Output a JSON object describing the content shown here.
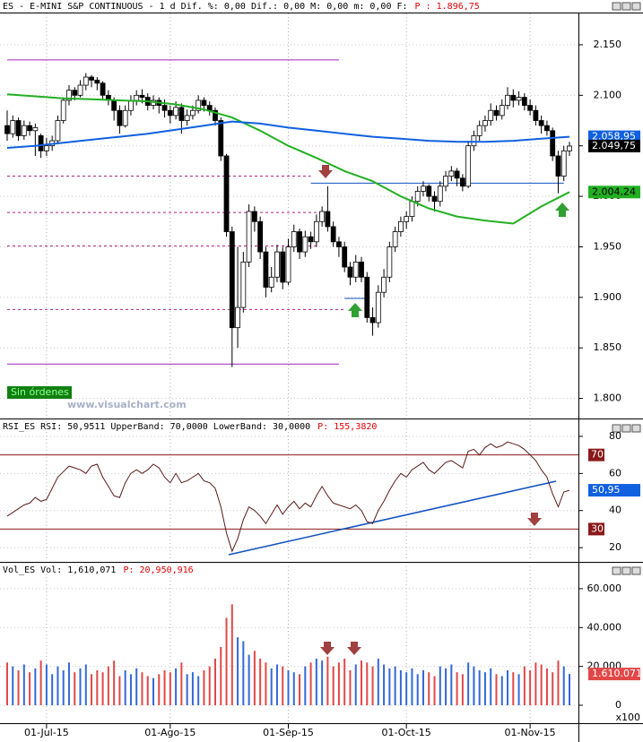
{
  "chart_data": [
    {
      "type": "candlestick",
      "title": "ES - E-MINI S&P CONTINUOUS - 1 d Dif. %: 0,00 Dif.: 0,00 M: 0,00 m: 0,00 F:",
      "subtitle": "P : 1.896,75",
      "annotations": [
        "Sin órdenes",
        "www.visualchart.com"
      ],
      "up_color": "#ffffff",
      "down_color": "#000000",
      "ylim": [
        1781,
        2181
      ],
      "yticks": [
        {
          "value": 1800,
          "label": "1.800"
        },
        {
          "value": 1850,
          "label": "1.850"
        },
        {
          "value": 1900,
          "label": "1.900"
        },
        {
          "value": 1950,
          "label": "1.950"
        },
        {
          "value": 2000,
          "label": "2.000"
        },
        {
          "value": 2050,
          "label": "2.050"
        },
        {
          "value": 2100,
          "label": "2.100"
        },
        {
          "value": 2150,
          "label": "2.150"
        }
      ],
      "ohlc": [
        [
          2070,
          2085,
          2055,
          2062
        ],
        [
          2062,
          2080,
          2058,
          2075
        ],
        [
          2075,
          2078,
          2055,
          2060
        ],
        [
          2060,
          2075,
          2056,
          2070
        ],
        [
          2070,
          2074,
          2060,
          2065
        ],
        [
          2065,
          2072,
          2040,
          2068
        ],
        [
          2060,
          2062,
          2038,
          2045
        ],
        [
          2045,
          2058,
          2040,
          2050
        ],
        [
          2050,
          2060,
          2045,
          2055
        ],
        [
          2055,
          2080,
          2052,
          2075
        ],
        [
          2075,
          2098,
          2072,
          2095
        ],
        [
          2095,
          2110,
          2090,
          2105
        ],
        [
          2105,
          2108,
          2095,
          2100
        ],
        [
          2100,
          2115,
          2098,
          2110
        ],
        [
          2110,
          2122,
          2105,
          2118
        ],
        [
          2118,
          2120,
          2108,
          2115
        ],
        [
          2115,
          2118,
          2105,
          2112
        ],
        [
          2112,
          2114,
          2095,
          2100
        ],
        [
          2100,
          2105,
          2090,
          2095
        ],
        [
          2095,
          2098,
          2075,
          2085
        ],
        [
          2085,
          2090,
          2062,
          2070
        ],
        [
          2070,
          2090,
          2068,
          2085
        ],
        [
          2085,
          2100,
          2080,
          2095
        ],
        [
          2095,
          2105,
          2090,
          2100
        ],
        [
          2100,
          2106,
          2092,
          2098
        ],
        [
          2098,
          2102,
          2085,
          2090
        ],
        [
          2090,
          2100,
          2086,
          2095
        ],
        [
          2095,
          2098,
          2082,
          2090
        ],
        [
          2090,
          2096,
          2078,
          2085
        ],
        [
          2085,
          2090,
          2072,
          2080
        ],
        [
          2080,
          2094,
          2076,
          2088
        ],
        [
          2088,
          2092,
          2062,
          2075
        ],
        [
          2075,
          2086,
          2070,
          2080
        ],
        [
          2080,
          2090,
          2076,
          2085
        ],
        [
          2085,
          2100,
          2082,
          2095
        ],
        [
          2095,
          2098,
          2084,
          2090
        ],
        [
          2090,
          2094,
          2080,
          2085
        ],
        [
          2085,
          2088,
          2070,
          2075
        ],
        [
          2075,
          2078,
          2035,
          2040
        ],
        [
          2040,
          2042,
          1960,
          1965
        ],
        [
          1965,
          1970,
          1831,
          1870
        ],
        [
          1870,
          1950,
          1850,
          1890
        ],
        [
          1890,
          1945,
          1885,
          1935
        ],
        [
          1935,
          1992,
          1930,
          1985
        ],
        [
          1985,
          1990,
          1965,
          1975
        ],
        [
          1975,
          1980,
          1938,
          1945
        ],
        [
          1945,
          1950,
          1900,
          1910
        ],
        [
          1910,
          1930,
          1905,
          1920
        ],
        [
          1920,
          1952,
          1915,
          1945
        ],
        [
          1945,
          1950,
          1908,
          1915
        ],
        [
          1915,
          1958,
          1912,
          1950
        ],
        [
          1950,
          1972,
          1945,
          1965
        ],
        [
          1965,
          1968,
          1938,
          1945
        ],
        [
          1945,
          1966,
          1940,
          1960
        ],
        [
          1960,
          1965,
          1948,
          1955
        ],
        [
          1955,
          1982,
          1950,
          1975
        ],
        [
          1975,
          1990,
          1970,
          1985
        ],
        [
          1985,
          2010,
          1965,
          1970
        ],
        [
          1970,
          1975,
          1950,
          1955
        ],
        [
          1955,
          1960,
          1940,
          1950
        ],
        [
          1950,
          1955,
          1925,
          1930
        ],
        [
          1930,
          1935,
          1912,
          1920
        ],
        [
          1920,
          1942,
          1915,
          1935
        ],
        [
          1935,
          1940,
          1915,
          1920
        ],
        [
          1920,
          1925,
          1875,
          1880
        ],
        [
          1880,
          1890,
          1862,
          1875
        ],
        [
          1875,
          1912,
          1870,
          1905
        ],
        [
          1905,
          1928,
          1900,
          1920
        ],
        [
          1920,
          1955,
          1915,
          1950
        ],
        [
          1950,
          1970,
          1945,
          1965
        ],
        [
          1965,
          1980,
          1960,
          1975
        ],
        [
          1975,
          1985,
          1968,
          1980
        ],
        [
          1980,
          2000,
          1975,
          1995
        ],
        [
          1995,
          2010,
          1990,
          2005
        ],
        [
          2005,
          2015,
          2000,
          2010
        ],
        [
          2010,
          2012,
          1995,
          2000
        ],
        [
          2000,
          2005,
          1985,
          1995
        ],
        [
          1995,
          2015,
          1990,
          2010
        ],
        [
          2010,
          2025,
          2005,
          2020
        ],
        [
          2020,
          2030,
          2015,
          2025
        ],
        [
          2025,
          2028,
          2010,
          2018
        ],
        [
          2018,
          2022,
          2005,
          2010
        ],
        [
          2010,
          2055,
          2008,
          2050
        ],
        [
          2050,
          2065,
          2045,
          2060
        ],
        [
          2060,
          2075,
          2055,
          2070
        ],
        [
          2070,
          2080,
          2064,
          2075
        ],
        [
          2075,
          2092,
          2070,
          2085
        ],
        [
          2085,
          2090,
          2075,
          2080
        ],
        [
          2080,
          2096,
          2076,
          2090
        ],
        [
          2090,
          2108,
          2086,
          2100
        ],
        [
          2100,
          2106,
          2088,
          2095
        ],
        [
          2095,
          2104,
          2090,
          2098
        ],
        [
          2098,
          2102,
          2085,
          2090
        ],
        [
          2090,
          2096,
          2080,
          2085
        ],
        [
          2085,
          2090,
          2070,
          2075
        ],
        [
          2075,
          2080,
          2062,
          2070
        ],
        [
          2070,
          2075,
          2060,
          2065
        ],
        [
          2065,
          2068,
          2035,
          2040
        ],
        [
          2040,
          2045,
          2003,
          2020
        ],
        [
          2020,
          2050,
          2015,
          2045
        ],
        [
          2045,
          2054,
          2040,
          2049.75
        ]
      ],
      "lines": [
        {
          "color": "#22b022",
          "x": [
            0,
            5,
            10,
            15,
            20,
            25,
            30,
            35,
            40,
            45,
            50,
            55,
            60,
            65,
            70,
            75,
            80,
            85,
            90,
            95,
            100
          ],
          "values": [
            2101,
            2099,
            2097,
            2096,
            2095,
            2094,
            2091,
            2086,
            2078,
            2065,
            2050,
            2038,
            2025,
            2015,
            2000,
            1988,
            1980,
            1976,
            1973,
            1990,
            2004.24
          ]
        },
        {
          "color": "#1060e0",
          "x": [
            0,
            5,
            10,
            15,
            20,
            25,
            30,
            35,
            40,
            45,
            50,
            55,
            60,
            65,
            70,
            75,
            80,
            85,
            90,
            95,
            100
          ],
          "values": [
            2048,
            2050,
            2053,
            2056,
            2059,
            2062,
            2066,
            2070,
            2074,
            2072,
            2068,
            2065,
            2062,
            2059,
            2057,
            2055,
            2054,
            2054,
            2055,
            2057,
            2058.95
          ]
        }
      ],
      "levels": [
        {
          "value": 2135,
          "color": "#a020c0",
          "dashed": false,
          "from": 0,
          "to": 59
        },
        {
          "value": 1834,
          "color": "#a020c0",
          "dashed": false,
          "from": 0,
          "to": 59
        },
        {
          "value": 2020,
          "color": "#b02080",
          "dashed": true,
          "from": 0,
          "to": 54
        },
        {
          "value": 1984,
          "color": "#b02080",
          "dashed": true,
          "from": 0,
          "to": 56
        },
        {
          "value": 1951,
          "color": "#b02080",
          "dashed": true,
          "from": 0,
          "to": 55
        },
        {
          "value": 1888,
          "color": "#b02080",
          "dashed": true,
          "from": 0,
          "to": 60
        },
        {
          "value": 2013,
          "color": "#1050c0",
          "dashed": false,
          "from": 54,
          "to": 99
        },
        {
          "value": 1899,
          "color": "#1050c0",
          "dashed": false,
          "from": 60,
          "to": 64
        }
      ],
      "price_labels": [
        {
          "value": 2058.95,
          "label": "2.058,95",
          "color": "#1060e0",
          "text_color": "#ffffff"
        },
        {
          "value": 2049.75,
          "label": "2.049,75",
          "color": "#000000",
          "text_color": "#ffffff"
        },
        {
          "value": 2004.24,
          "label": "2.004,24",
          "color": "#22b022",
          "text_color": "#000000"
        }
      ]
    },
    {
      "type": "line",
      "title": "RSI_ES RSI: 50,9511 UpperBand: 70,0000 LowerBand: 30,0000",
      "subtitle": "P: 155,3820",
      "color": "#5a1a1a",
      "ylim": [
        12.8,
        88.2
      ],
      "yticks": [
        20,
        40,
        60,
        80
      ],
      "bands": [
        70,
        30
      ],
      "band_color": "#8b1a1a",
      "last_label": {
        "value": 50.95,
        "label": "50,95"
      },
      "trendline": {
        "color": "#1050c0",
        "x": [
          39.4,
          97.6
        ],
        "values": [
          16.2,
          55.8
        ]
      },
      "values": [
        37,
        39,
        41,
        43,
        44,
        47,
        45,
        46,
        52,
        58,
        61,
        64,
        63,
        62,
        60,
        64,
        65,
        58,
        53,
        48,
        47,
        55,
        60,
        62,
        60,
        62,
        65,
        63,
        58,
        55,
        60,
        55,
        56,
        58,
        60,
        56,
        55,
        52,
        42,
        28,
        18,
        25,
        35,
        42,
        40,
        37,
        33,
        38,
        43,
        38,
        42,
        45,
        41,
        44,
        42,
        48,
        53,
        48,
        44,
        43,
        42,
        41,
        43,
        40,
        34,
        33,
        40,
        45,
        51,
        56,
        60,
        58,
        62,
        64,
        66,
        62,
        60,
        63,
        66,
        67,
        65,
        63,
        72,
        73,
        70,
        74,
        76,
        74,
        75,
        77,
        76,
        75,
        73,
        70,
        67,
        62,
        58,
        49,
        42,
        50,
        50.95
      ]
    },
    {
      "type": "bar",
      "title": "Vol_ES Vol: 1,610,071",
      "subtitle": "P: 20,950,916",
      "up_color": "#3468d8",
      "down_color": "#e04848",
      "scale_note": "x100",
      "ylim": [
        -8300,
        71500
      ],
      "yticks": [
        0,
        {
          "value": 20000,
          "label": "20.000"
        },
        {
          "value": 40000,
          "label": "40.000"
        },
        {
          "value": 60000,
          "label": "60.000"
        }
      ],
      "last_label": {
        "value": 16100.71,
        "label": "1.610.071"
      },
      "categories": [
        null,
        null,
        null,
        null,
        null,
        null,
        null,
        "01-Jul-15",
        null,
        null,
        null,
        null,
        null,
        null,
        null,
        null,
        null,
        null,
        null,
        null,
        null,
        null,
        null,
        null,
        null,
        null,
        null,
        null,
        null,
        "01-Ago-15",
        null,
        null,
        null,
        null,
        null,
        null,
        null,
        null,
        null,
        null,
        null,
        null,
        null,
        null,
        null,
        null,
        null,
        null,
        null,
        null,
        "01-Sep-15",
        null,
        null,
        null,
        null,
        null,
        null,
        null,
        null,
        null,
        null,
        null,
        null,
        null,
        null,
        null,
        null,
        null,
        null,
        null,
        null,
        "01-Oct-15",
        null,
        null,
        null,
        null,
        null,
        null,
        null,
        null,
        null,
        null,
        null,
        null,
        null,
        null,
        null,
        null,
        null,
        null,
        null,
        null,
        null,
        "01-Nov-15",
        null,
        null,
        null,
        null,
        null,
        null,
        null
      ],
      "values": [
        22000,
        20000,
        18000,
        21000,
        17000,
        19000,
        23000,
        21000,
        16000,
        20000,
        18000,
        22000,
        17000,
        19000,
        21000,
        16000,
        18000,
        17000,
        20000,
        23000,
        15000,
        18000,
        16000,
        19000,
        17000,
        15000,
        14000,
        16000,
        18000,
        17000,
        19000,
        22000,
        16000,
        17000,
        15000,
        18000,
        20000,
        24000,
        30000,
        45000,
        52000,
        35000,
        33000,
        26000,
        28000,
        24000,
        22000,
        19000,
        21000,
        20000,
        18000,
        17000,
        16000,
        20000,
        22000,
        24000,
        23000,
        25000,
        20000,
        22000,
        24000,
        18000,
        21000,
        23000,
        22000,
        20000,
        24000,
        21000,
        19000,
        20000,
        18000,
        17000,
        19000,
        16000,
        18000,
        17000,
        15000,
        20000,
        19000,
        21000,
        17000,
        16000,
        22000,
        20000,
        18000,
        17000,
        19000,
        16000,
        15000,
        18000,
        17000,
        16000,
        20000,
        18000,
        22000,
        21000,
        19000,
        17000,
        23000,
        20000,
        16100.71
      ]
    }
  ]
}
